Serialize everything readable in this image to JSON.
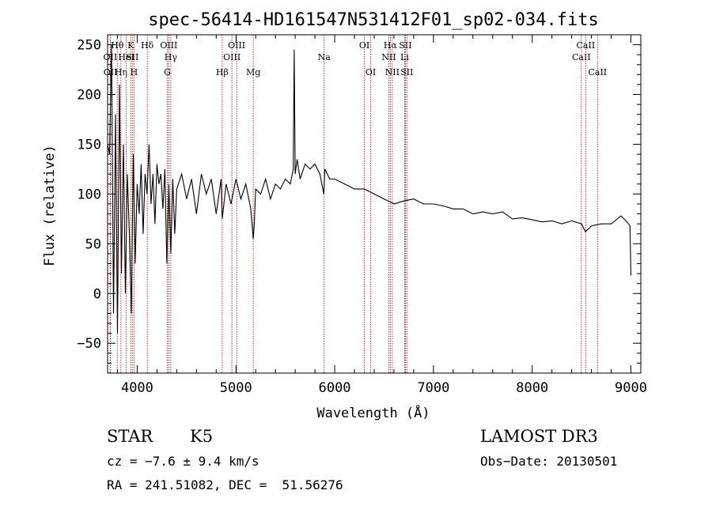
{
  "chart_data": {
    "type": "line",
    "title": "spec-56414-HD161547N531412F01_sp02-034.fits",
    "xlabel": "Wavelength (Å)",
    "ylabel": "Flux (relative)",
    "xlim": [
      3700,
      9100
    ],
    "ylim": [
      -80,
      260
    ],
    "xticks": [
      4000,
      5000,
      6000,
      7000,
      8000,
      9000
    ],
    "yticks": [
      -50,
      0,
      50,
      100,
      150,
      200,
      250
    ],
    "xtick_labels": [
      "4000",
      "5000",
      "6000",
      "7000",
      "8000",
      "9000"
    ],
    "ytick_labels": [
      "−50",
      "0",
      "50",
      "100",
      "150",
      "200",
      "250"
    ],
    "series": [
      {
        "name": "flux",
        "x": [
          3700,
          3720,
          3740,
          3760,
          3780,
          3800,
          3820,
          3840,
          3860,
          3880,
          3900,
          3920,
          3940,
          3960,
          3980,
          4000,
          4020,
          4040,
          4060,
          4080,
          4100,
          4120,
          4140,
          4160,
          4180,
          4200,
          4220,
          4240,
          4260,
          4280,
          4300,
          4320,
          4340,
          4360,
          4380,
          4400,
          4450,
          4500,
          4550,
          4600,
          4650,
          4700,
          4750,
          4800,
          4850,
          4861,
          4900,
          4950,
          5000,
          5050,
          5100,
          5150,
          5175,
          5185,
          5200,
          5250,
          5300,
          5350,
          5400,
          5450,
          5500,
          5550,
          5580,
          5590,
          5600,
          5620,
          5650,
          5700,
          5750,
          5800,
          5850,
          5890,
          5900,
          5950,
          6000,
          6100,
          6200,
          6300,
          6400,
          6500,
          6563,
          6600,
          6700,
          6800,
          6900,
          7000,
          7100,
          7200,
          7300,
          7400,
          7500,
          7600,
          7700,
          7800,
          7900,
          8000,
          8100,
          8200,
          8300,
          8400,
          8500,
          8540,
          8600,
          8700,
          8800,
          8900,
          8960,
          8990,
          9000
        ],
        "y": [
          150,
          140,
          250,
          -20,
          180,
          -40,
          210,
          20,
          150,
          0,
          120,
          60,
          -20,
          140,
          30,
          110,
          80,
          130,
          60,
          120,
          100,
          150,
          90,
          120,
          70,
          130,
          110,
          120,
          85,
          125,
          30,
          110,
          40,
          115,
          60,
          105,
          120,
          95,
          115,
          80,
          120,
          100,
          115,
          80,
          115,
          75,
          110,
          90,
          115,
          95,
          110,
          85,
          55,
          70,
          105,
          100,
          115,
          95,
          110,
          105,
          115,
          110,
          125,
          245,
          120,
          135,
          115,
          130,
          125,
          130,
          120,
          100,
          125,
          115,
          115,
          110,
          105,
          105,
          100,
          95,
          92,
          90,
          93,
          95,
          90,
          90,
          88,
          85,
          85,
          80,
          82,
          80,
          82,
          75,
          76,
          74,
          72,
          73,
          70,
          73,
          70,
          62,
          68,
          70,
          70,
          78,
          72,
          68,
          18
        ]
      }
    ],
    "spectral_lines": [
      {
        "label": "OII",
        "wavelength": 3727,
        "row": 2
      },
      {
        "label": "OII",
        "wavelength": 3729,
        "row": 3
      },
      {
        "label": "Hθ",
        "wavelength": 3798,
        "row": 1
      },
      {
        "label": "Hη",
        "wavelength": 3835,
        "row": 3
      },
      {
        "label": "HeI",
        "wavelength": 3889,
        "row": 2
      },
      {
        "label": "K",
        "wavelength": 3934,
        "row": 1
      },
      {
        "label": "SII",
        "wavelength": 3950,
        "row": 2
      },
      {
        "label": "H",
        "wavelength": 3968,
        "row": 3
      },
      {
        "label": "Hδ",
        "wavelength": 4102,
        "row": 1
      },
      {
        "label": "OIII",
        "wavelength": 4320,
        "row": 1
      },
      {
        "label": "Hγ",
        "wavelength": 4340,
        "row": 2
      },
      {
        "label": "G",
        "wavelength": 4305,
        "row": 3
      },
      {
        "label": "Hβ",
        "wavelength": 4861,
        "row": 3
      },
      {
        "label": "OIII",
        "wavelength": 4959,
        "row": 2
      },
      {
        "label": "OIII",
        "wavelength": 5007,
        "row": 1
      },
      {
        "label": "Mg",
        "wavelength": 5175,
        "row": 3
      },
      {
        "label": "Na",
        "wavelength": 5893,
        "row": 2
      },
      {
        "label": "OI",
        "wavelength": 6300,
        "row": 1
      },
      {
        "label": "OI",
        "wavelength": 6364,
        "row": 3
      },
      {
        "label": "NII",
        "wavelength": 6548,
        "row": 2
      },
      {
        "label": "Hα",
        "wavelength": 6563,
        "row": 1
      },
      {
        "label": "NII",
        "wavelength": 6583,
        "row": 3
      },
      {
        "label": "Li",
        "wavelength": 6708,
        "row": 2
      },
      {
        "label": "SII",
        "wavelength": 6716,
        "row": 1
      },
      {
        "label": "SII",
        "wavelength": 6731,
        "row": 3
      },
      {
        "label": "CaII",
        "wavelength": 8498,
        "row": 2
      },
      {
        "label": "CaII",
        "wavelength": 8542,
        "row": 1
      },
      {
        "label": "CaII",
        "wavelength": 8662,
        "row": 3
      }
    ],
    "colors": {
      "data": "#000000",
      "lines": "#c00000",
      "axes": "#000000"
    }
  },
  "info": {
    "object_class": "STAR",
    "subclass": "K5",
    "survey": "LAMOST DR3",
    "redshift": "cz = −7.6 ± 9.4 km/s",
    "obs_date": "Obs−Date: 20130501",
    "coords": "RA = 241.51082, DEC =  51.56276"
  }
}
